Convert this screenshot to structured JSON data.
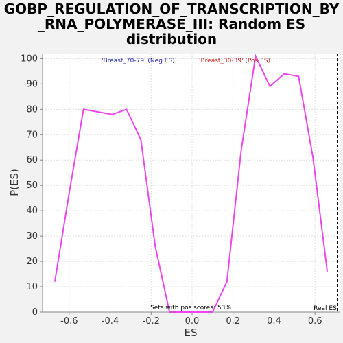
{
  "chart_data": {
    "type": "line",
    "title_lines": [
      "GOBP_REGULATION_OF_TRANSCRIPTION_BY",
      "_RNA_POLYMERASE_III: Random ES",
      "distribution"
    ],
    "xlabel": "ES",
    "ylabel": "P(ES)",
    "xlim": [
      -0.73,
      0.72
    ],
    "ylim": [
      0,
      102
    ],
    "x_ticks": [
      -0.6,
      -0.4,
      -0.2,
      0.0,
      0.2,
      0.4,
      0.6
    ],
    "x_tick_labels": [
      "-0.6",
      "-0.4",
      "-0.2",
      "0.0",
      "0.2",
      "0.4",
      "0.6"
    ],
    "y_ticks": [
      0,
      10,
      20,
      30,
      40,
      50,
      60,
      70,
      80,
      90,
      100
    ],
    "y_tick_labels": [
      "0",
      "10",
      "20",
      "30",
      "40",
      "50",
      "60",
      "70",
      "80",
      "90",
      "100"
    ],
    "grid": true,
    "series": [
      {
        "color": "#ee44ee",
        "x": [
          -0.67,
          -0.6,
          -0.53,
          -0.46,
          -0.39,
          -0.32,
          -0.25,
          -0.18,
          -0.11,
          -0.04,
          0.03,
          0.1,
          0.17,
          0.24,
          0.31,
          0.38,
          0.45,
          0.52,
          0.59,
          0.66
        ],
        "y": [
          12,
          47,
          80,
          79,
          78,
          80,
          68,
          26,
          0,
          0,
          0,
          0,
          12,
          64,
          101,
          89,
          94,
          93,
          61,
          16
        ]
      }
    ],
    "legend": [
      {
        "label": "'Breast_70-79' (Neg ES)",
        "color": "#2222aa"
      },
      {
        "label": "'Breast_30-39' (Pos ES)",
        "color": "#cc2222"
      }
    ],
    "annotations": {
      "pos_scores": "Sets with pos scores: 53%",
      "real_es_label": "Real ES",
      "real_es_x": 0.71
    }
  }
}
